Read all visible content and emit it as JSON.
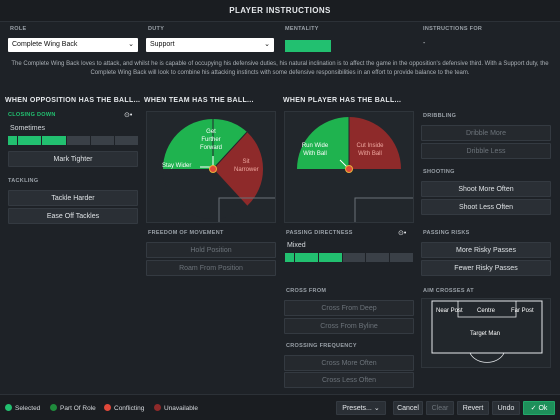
{
  "title": "PLAYER INSTRUCTIONS",
  "header": {
    "role_label": "ROLE",
    "role_value": "Complete Wing Back",
    "duty_label": "DUTY",
    "duty_value": "Support",
    "mentality_label": "MENTALITY",
    "instructions_for_label": "INSTRUCTIONS FOR",
    "instructions_for_value": "-"
  },
  "description": "The Complete Wing Back loves to attack, and whilst he is capable of occupying his defensive duties, his natural inclination is to affect the game in the opposition's defensive third. With a Support duty, the Complete Wing Back will look to combine his attacking instincts with some defensive responsibilities in an effort to provide balance to the team.",
  "sections": {
    "opposition": "WHEN OPPOSITION HAS THE BALL...",
    "team": "WHEN TEAM HAS THE BALL...",
    "player": "WHEN PLAYER HAS THE BALL..."
  },
  "closing_down": {
    "label": "CLOSING DOWN",
    "value": "Sometimes",
    "level": 0.4,
    "button": "Mark Tighter"
  },
  "tackling": {
    "label": "TACKLING",
    "hard": "Tackle Harder",
    "ease": "Ease Off Tackles"
  },
  "team_pitch": {
    "forward": "Get Further Forward",
    "wider": "Stay Wider",
    "narrower": "Sit Narrower"
  },
  "player_pitch": {
    "run_wide": "Run Wide With Ball",
    "cut_inside": "Cut Inside With Ball"
  },
  "dribbling": {
    "label": "DRIBBLING",
    "more": "Dribble More",
    "less": "Dribble Less"
  },
  "shooting": {
    "label": "SHOOTING",
    "more": "Shoot More Often",
    "less": "Shoot Less Often"
  },
  "freedom": {
    "label": "FREEDOM OF MOVEMENT",
    "hold": "Hold Position",
    "roam": "Roam From Position"
  },
  "passing_directness": {
    "label": "PASSING DIRECTNESS",
    "value": "Mixed",
    "level": 0.4
  },
  "passing_risks": {
    "label": "PASSING RISKS",
    "more": "More Risky Passes",
    "fewer": "Fewer Risky Passes"
  },
  "cross_from": {
    "label": "CROSS FROM",
    "deep": "Cross From Deep",
    "byline": "Cross From Byline"
  },
  "crossing_frequency": {
    "label": "CROSSING FREQUENCY",
    "more": "Cross More Often",
    "less": "Cross Less Often"
  },
  "aim_crosses": {
    "label": "AIM CROSSES AT",
    "near": "Near Post",
    "centre": "Centre",
    "far": "Far Post",
    "target": "Target Man"
  },
  "legend": {
    "selected": "Selected",
    "part": "Part Of Role",
    "conflicting": "Conflicting",
    "unavailable": "Unavailable"
  },
  "footer": {
    "presets": "Presets...",
    "cancel": "Cancel",
    "clear": "Clear",
    "revert": "Revert",
    "undo": "Undo",
    "ok": "Ok"
  },
  "colors": {
    "green": "#22c070",
    "red": "#e0483a",
    "dark_red": "#8e2a2a",
    "bg": "#1e2227"
  }
}
